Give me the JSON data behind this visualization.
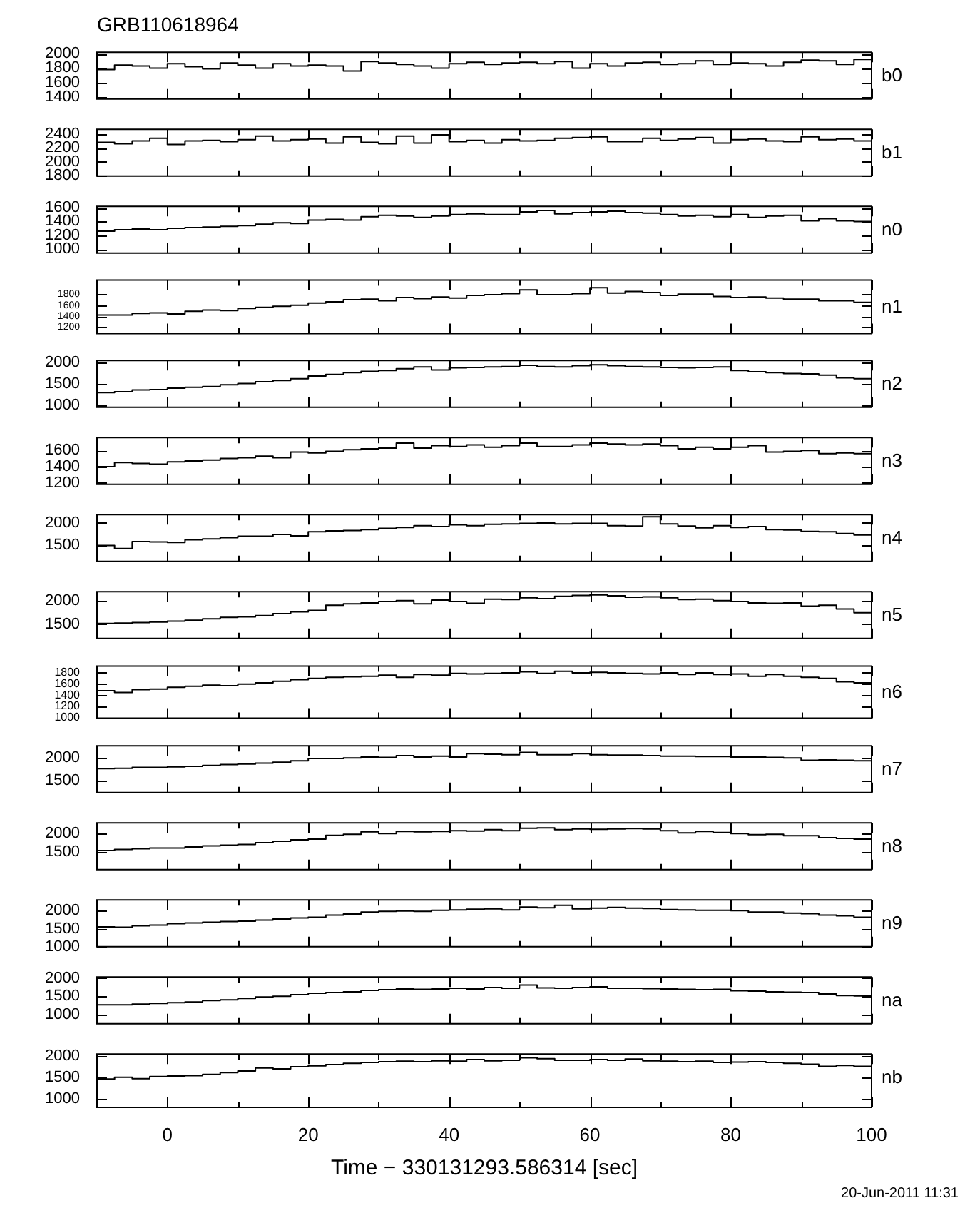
{
  "chart_data": [
    {
      "type": "step",
      "title": "GRB110618964",
      "ylabel": "b0",
      "color": "#000000",
      "xlim": [
        -10,
        100
      ],
      "xticks": [
        0,
        {
          "value": 10,
          "label": null
        },
        20,
        {
          "value": 30,
          "label": null
        },
        40,
        {
          "value": 50,
          "label": null
        },
        60,
        {
          "value": 70,
          "label": null
        },
        80,
        {
          "value": 90,
          "label": null
        },
        100
      ],
      "ylim": [
        1370,
        2020
      ],
      "yticks": [
        1400,
        1600,
        1800,
        2000
      ],
      "tick_labels": "y",
      "x": [
        -10,
        -7.5,
        -5,
        -2.5,
        0,
        2.5,
        5,
        7.5,
        10,
        12.5,
        15,
        17.5,
        20,
        22.5,
        25,
        27.5,
        30,
        32.5,
        35,
        37.5,
        40,
        42.5,
        45,
        47.5,
        50,
        52.5,
        55,
        57.5,
        60,
        62.5,
        65,
        67.5,
        70,
        72.5,
        75,
        77.5,
        80,
        82.5,
        85,
        87.5,
        90,
        92.5,
        95,
        97.5,
        100
      ],
      "values": [
        1780,
        1840,
        1830,
        1800,
        1860,
        1820,
        1790,
        1870,
        1840,
        1800,
        1860,
        1830,
        1840,
        1830,
        1760,
        1890,
        1870,
        1850,
        1830,
        1800,
        1860,
        1880,
        1850,
        1870,
        1880,
        1860,
        1890,
        1800,
        1860,
        1830,
        1870,
        1880,
        1850,
        1860,
        1900,
        1850,
        1870,
        1860,
        1830,
        1880,
        1910,
        1900,
        1850,
        1920,
        1920
      ]
    },
    {
      "type": "step",
      "ylabel": "b1",
      "color": "#000000",
      "xlim": [
        -10,
        100
      ],
      "xticks": [
        0,
        {
          "value": 10,
          "label": null
        },
        20,
        {
          "value": 30,
          "label": null
        },
        40,
        {
          "value": 50,
          "label": null
        },
        60,
        {
          "value": 70,
          "label": null
        },
        80,
        {
          "value": 90,
          "label": null
        },
        100
      ],
      "ylim": [
        1790,
        2470
      ],
      "yticks": [
        1800,
        2000,
        2200,
        2400
      ],
      "tick_labels": "y",
      "x": [
        -10,
        -7.5,
        -5,
        -2.5,
        0,
        2.5,
        5,
        7.5,
        10,
        12.5,
        15,
        17.5,
        20,
        22.5,
        25,
        27.5,
        30,
        32.5,
        35,
        37.5,
        40,
        42.5,
        45,
        47.5,
        50,
        52.5,
        55,
        57.5,
        60,
        62.5,
        65,
        67.5,
        70,
        72.5,
        75,
        77.5,
        80,
        82.5,
        85,
        87.5,
        90,
        92.5,
        95,
        97.5,
        100
      ],
      "values": [
        2280,
        2260,
        2300,
        2340,
        2250,
        2300,
        2310,
        2290,
        2320,
        2370,
        2300,
        2320,
        2330,
        2270,
        2360,
        2280,
        2260,
        2370,
        2270,
        2390,
        2290,
        2310,
        2270,
        2320,
        2300,
        2310,
        2340,
        2350,
        2360,
        2290,
        2290,
        2340,
        2310,
        2330,
        2350,
        2270,
        2320,
        2330,
        2300,
        2290,
        2360,
        2320,
        2330,
        2300,
        2300
      ]
    },
    {
      "type": "step",
      "ylabel": "n0",
      "color": "#000000",
      "xlim": [
        -10,
        100
      ],
      "xticks": [
        0,
        {
          "value": 10,
          "label": null
        },
        20,
        {
          "value": 30,
          "label": null
        },
        40,
        {
          "value": 50,
          "label": null
        },
        60,
        {
          "value": 70,
          "label": null
        },
        80,
        {
          "value": 90,
          "label": null
        },
        100
      ],
      "ylim": [
        940,
        1620
      ],
      "yticks": [
        1000,
        1200,
        1400,
        1600
      ],
      "tick_labels": "y",
      "x": [
        -10,
        -7.5,
        -5,
        -2.5,
        0,
        2.5,
        5,
        7.5,
        10,
        12.5,
        15,
        17.5,
        20,
        22.5,
        25,
        27.5,
        30,
        32.5,
        35,
        37.5,
        40,
        42.5,
        45,
        47.5,
        50,
        52.5,
        55,
        57.5,
        60,
        62.5,
        65,
        67.5,
        70,
        72.5,
        75,
        77.5,
        80,
        82.5,
        85,
        87.5,
        90,
        92.5,
        95,
        97.5,
        100
      ],
      "values": [
        1260,
        1280,
        1290,
        1280,
        1300,
        1310,
        1320,
        1330,
        1340,
        1360,
        1380,
        1370,
        1420,
        1430,
        1420,
        1470,
        1490,
        1480,
        1460,
        1480,
        1500,
        1510,
        1500,
        1500,
        1540,
        1560,
        1510,
        1530,
        1540,
        1550,
        1530,
        1520,
        1500,
        1480,
        1490,
        1470,
        1500,
        1460,
        1480,
        1490,
        1410,
        1440,
        1410,
        1400,
        1400
      ]
    },
    {
      "type": "step",
      "ylabel": "n1",
      "color": "#000000",
      "xlim": [
        -10,
        100
      ],
      "xticks": [
        0,
        {
          "value": 10,
          "label": null
        },
        20,
        {
          "value": 30,
          "label": null
        },
        40,
        {
          "value": 50,
          "label": null
        },
        60,
        {
          "value": 70,
          "label": null
        },
        80,
        {
          "value": 90,
          "label": null
        },
        100
      ],
      "ylim": [
        1080,
        2060
      ],
      "yticks": [
        1200,
        1400,
        1600,
        1800
      ],
      "tick_labels": "y",
      "x": [
        -10,
        -7.5,
        -5,
        -2.5,
        0,
        2.5,
        5,
        7.5,
        10,
        12.5,
        15,
        17.5,
        20,
        22.5,
        25,
        27.5,
        30,
        32.5,
        35,
        37.5,
        40,
        42.5,
        45,
        47.5,
        50,
        52.5,
        55,
        57.5,
        60,
        62.5,
        65,
        67.5,
        70,
        72.5,
        75,
        77.5,
        80,
        82.5,
        85,
        87.5,
        90,
        92.5,
        95,
        97.5,
        100
      ],
      "values": [
        1420,
        1420,
        1450,
        1460,
        1440,
        1490,
        1510,
        1500,
        1540,
        1560,
        1580,
        1600,
        1640,
        1660,
        1700,
        1710,
        1680,
        1740,
        1720,
        1750,
        1730,
        1780,
        1790,
        1810,
        1880,
        1790,
        1790,
        1810,
        1920,
        1820,
        1850,
        1830,
        1780,
        1800,
        1800,
        1760,
        1740,
        1750,
        1730,
        1710,
        1710,
        1680,
        1680,
        1650,
        1650
      ]
    },
    {
      "type": "step",
      "ylabel": "n2",
      "color": "#000000",
      "xlim": [
        -10,
        100
      ],
      "xticks": [
        0,
        {
          "value": 10,
          "label": null
        },
        20,
        {
          "value": 30,
          "label": null
        },
        40,
        {
          "value": 50,
          "label": null
        },
        60,
        {
          "value": 70,
          "label": null
        },
        80,
        {
          "value": 90,
          "label": null
        },
        100
      ],
      "ylim": [
        960,
        2040
      ],
      "yticks": [
        1000,
        1500,
        2000
      ],
      "tick_labels": "y",
      "x": [
        -10,
        -7.5,
        -5,
        -2.5,
        0,
        2.5,
        5,
        7.5,
        10,
        12.5,
        15,
        17.5,
        20,
        22.5,
        25,
        27.5,
        30,
        32.5,
        35,
        37.5,
        40,
        42.5,
        45,
        47.5,
        50,
        52.5,
        55,
        57.5,
        60,
        62.5,
        65,
        67.5,
        70,
        72.5,
        75,
        77.5,
        80,
        82.5,
        85,
        87.5,
        90,
        92.5,
        95,
        97.5,
        100
      ],
      "values": [
        1300,
        1320,
        1360,
        1370,
        1400,
        1420,
        1440,
        1480,
        1510,
        1550,
        1580,
        1620,
        1680,
        1720,
        1760,
        1790,
        1810,
        1850,
        1890,
        1820,
        1870,
        1880,
        1890,
        1900,
        1930,
        1900,
        1890,
        1920,
        1940,
        1920,
        1900,
        1890,
        1880,
        1870,
        1880,
        1890,
        1810,
        1780,
        1760,
        1740,
        1730,
        1700,
        1640,
        1620,
        1620
      ]
    },
    {
      "type": "step",
      "ylabel": "n3",
      "color": "#000000",
      "xlim": [
        -10,
        100
      ],
      "xticks": [
        0,
        {
          "value": 10,
          "label": null
        },
        20,
        {
          "value": 30,
          "label": null
        },
        40,
        {
          "value": 50,
          "label": null
        },
        60,
        {
          "value": 70,
          "label": null
        },
        80,
        {
          "value": 90,
          "label": null
        },
        100
      ],
      "ylim": [
        1180,
        1760
      ],
      "yticks": [
        1200,
        1400,
        1600
      ],
      "tick_labels": "y",
      "x": [
        -10,
        -7.5,
        -5,
        -2.5,
        0,
        2.5,
        5,
        7.5,
        10,
        12.5,
        15,
        17.5,
        20,
        22.5,
        25,
        27.5,
        30,
        32.5,
        35,
        37.5,
        40,
        42.5,
        45,
        47.5,
        50,
        52.5,
        55,
        57.5,
        60,
        62.5,
        65,
        67.5,
        70,
        72.5,
        75,
        77.5,
        80,
        82.5,
        85,
        87.5,
        90,
        92.5,
        95,
        97.5,
        100
      ],
      "values": [
        1400,
        1450,
        1440,
        1430,
        1460,
        1470,
        1480,
        1500,
        1510,
        1530,
        1510,
        1580,
        1570,
        1590,
        1610,
        1620,
        1630,
        1690,
        1630,
        1660,
        1650,
        1670,
        1640,
        1660,
        1690,
        1650,
        1650,
        1670,
        1690,
        1680,
        1670,
        1680,
        1660,
        1620,
        1640,
        1620,
        1640,
        1660,
        1580,
        1590,
        1600,
        1560,
        1570,
        1560,
        1560
      ]
    },
    {
      "type": "step",
      "ylabel": "n4",
      "color": "#000000",
      "xlim": [
        -10,
        100
      ],
      "xticks": [
        0,
        {
          "value": 10,
          "label": null
        },
        20,
        {
          "value": 30,
          "label": null
        },
        40,
        {
          "value": 50,
          "label": null
        },
        60,
        {
          "value": 70,
          "label": null
        },
        80,
        {
          "value": 90,
          "label": null
        },
        100
      ],
      "ylim": [
        1130,
        2190
      ],
      "yticks": [
        1500,
        2000
      ],
      "tick_labels": "y",
      "x": [
        -10,
        -7.5,
        -5,
        -2.5,
        0,
        2.5,
        5,
        7.5,
        10,
        12.5,
        15,
        17.5,
        20,
        22.5,
        25,
        27.5,
        30,
        32.5,
        35,
        37.5,
        40,
        42.5,
        45,
        47.5,
        50,
        52.5,
        55,
        57.5,
        60,
        62.5,
        65,
        67.5,
        70,
        72.5,
        75,
        77.5,
        80,
        82.5,
        85,
        87.5,
        90,
        92.5,
        95,
        97.5,
        100
      ],
      "values": [
        1490,
        1420,
        1580,
        1570,
        1560,
        1620,
        1640,
        1670,
        1700,
        1700,
        1740,
        1710,
        1800,
        1820,
        1830,
        1850,
        1880,
        1900,
        1940,
        1920,
        1960,
        1940,
        1970,
        1980,
        1990,
        2000,
        1980,
        1990,
        1990,
        1940,
        1930,
        2140,
        1980,
        1930,
        1890,
        1940,
        1900,
        1920,
        1850,
        1840,
        1810,
        1800,
        1760,
        1730,
        1730
      ]
    },
    {
      "type": "step",
      "ylabel": "n5",
      "color": "#000000",
      "xlim": [
        -10,
        100
      ],
      "xticks": [
        0,
        {
          "value": 10,
          "label": null
        },
        20,
        {
          "value": 30,
          "label": null
        },
        40,
        {
          "value": 50,
          "label": null
        },
        60,
        {
          "value": 70,
          "label": null
        },
        80,
        {
          "value": 90,
          "label": null
        },
        100
      ],
      "ylim": [
        1190,
        2190
      ],
      "yticks": [
        1500,
        2000
      ],
      "tick_labels": "y",
      "x": [
        -10,
        -7.5,
        -5,
        -2.5,
        0,
        2.5,
        5,
        7.5,
        10,
        12.5,
        15,
        17.5,
        20,
        22.5,
        25,
        27.5,
        30,
        32.5,
        35,
        37.5,
        40,
        42.5,
        45,
        47.5,
        50,
        52.5,
        55,
        57.5,
        60,
        62.5,
        65,
        67.5,
        70,
        72.5,
        75,
        77.5,
        80,
        82.5,
        85,
        87.5,
        90,
        92.5,
        95,
        97.5,
        100
      ],
      "values": [
        1510,
        1520,
        1530,
        1540,
        1560,
        1580,
        1610,
        1640,
        1650,
        1680,
        1720,
        1760,
        1790,
        1900,
        1930,
        1950,
        1980,
        2000,
        1930,
        2010,
        1980,
        1940,
        2030,
        2020,
        2060,
        2040,
        2090,
        2110,
        2120,
        2100,
        2070,
        2080,
        2060,
        2020,
        2030,
        2000,
        1980,
        1950,
        1940,
        1950,
        1880,
        1900,
        1820,
        1740,
        1740
      ]
    },
    {
      "type": "step",
      "ylabel": "n6",
      "color": "#000000",
      "xlim": [
        -10,
        100
      ],
      "xticks": [
        0,
        {
          "value": 10,
          "label": null
        },
        20,
        {
          "value": 30,
          "label": null
        },
        40,
        {
          "value": 50,
          "label": null
        },
        60,
        {
          "value": 70,
          "label": null
        },
        80,
        {
          "value": 90,
          "label": null
        },
        100
      ],
      "ylim": [
        990,
        1920
      ],
      "yticks": [
        1000,
        1200,
        1400,
        1600,
        1800
      ],
      "tick_labels": "y",
      "x": [
        -10,
        -7.5,
        -5,
        -2.5,
        0,
        2.5,
        5,
        7.5,
        10,
        12.5,
        15,
        17.5,
        20,
        22.5,
        25,
        27.5,
        30,
        32.5,
        35,
        37.5,
        40,
        42.5,
        45,
        47.5,
        50,
        52.5,
        55,
        57.5,
        60,
        62.5,
        65,
        67.5,
        70,
        72.5,
        75,
        77.5,
        80,
        82.5,
        85,
        87.5,
        90,
        92.5,
        95,
        97.5,
        100
      ],
      "values": [
        1480,
        1450,
        1500,
        1510,
        1540,
        1560,
        1580,
        1570,
        1600,
        1620,
        1650,
        1680,
        1700,
        1720,
        1730,
        1740,
        1760,
        1720,
        1770,
        1760,
        1790,
        1780,
        1790,
        1800,
        1820,
        1790,
        1830,
        1800,
        1810,
        1800,
        1790,
        1780,
        1800,
        1770,
        1800,
        1770,
        1780,
        1740,
        1770,
        1740,
        1720,
        1700,
        1640,
        1620,
        1620
      ]
    },
    {
      "type": "step",
      "ylabel": "n7",
      "color": "#000000",
      "xlim": [
        -10,
        100
      ],
      "xticks": [
        0,
        {
          "value": 10,
          "label": null
        },
        20,
        {
          "value": 30,
          "label": null
        },
        40,
        {
          "value": 50,
          "label": null
        },
        60,
        {
          "value": 70,
          "label": null
        },
        80,
        {
          "value": 90,
          "label": null
        },
        100
      ],
      "ylim": [
        1250,
        2250
      ],
      "yticks": [
        1500,
        2000
      ],
      "tick_labels": "y",
      "x": [
        -10,
        -7.5,
        -5,
        -2.5,
        0,
        2.5,
        5,
        7.5,
        10,
        12.5,
        15,
        17.5,
        20,
        22.5,
        25,
        27.5,
        30,
        32.5,
        35,
        37.5,
        40,
        42.5,
        45,
        47.5,
        50,
        52.5,
        55,
        57.5,
        60,
        62.5,
        65,
        67.5,
        70,
        72.5,
        75,
        77.5,
        80,
        82.5,
        85,
        87.5,
        90,
        92.5,
        95,
        97.5,
        100
      ],
      "values": [
        1760,
        1770,
        1790,
        1790,
        1800,
        1810,
        1830,
        1850,
        1860,
        1880,
        1900,
        1930,
        1980,
        1980,
        1990,
        2010,
        2000,
        2040,
        2010,
        2030,
        2010,
        2080,
        2070,
        2060,
        2110,
        2060,
        2060,
        2080,
        2060,
        2050,
        2050,
        2040,
        2030,
        2030,
        2020,
        2020,
        2010,
        2010,
        2000,
        1990,
        1940,
        1950,
        1940,
        1930,
        1930
      ]
    },
    {
      "type": "step",
      "ylabel": "n8",
      "color": "#000000",
      "xlim": [
        -10,
        100
      ],
      "xticks": [
        0,
        {
          "value": 10,
          "label": null
        },
        20,
        {
          "value": 30,
          "label": null
        },
        40,
        {
          "value": 50,
          "label": null
        },
        60,
        {
          "value": 70,
          "label": null
        },
        80,
        {
          "value": 90,
          "label": null
        },
        100
      ],
      "ylim": [
        1000,
        2300
      ],
      "yticks": [
        1500,
        2000
      ],
      "tick_labels": "y",
      "x": [
        -10,
        -7.5,
        -5,
        -2.5,
        0,
        2.5,
        5,
        7.5,
        10,
        12.5,
        15,
        17.5,
        20,
        22.5,
        25,
        27.5,
        30,
        32.5,
        35,
        37.5,
        40,
        42.5,
        45,
        47.5,
        50,
        52.5,
        55,
        57.5,
        60,
        62.5,
        65,
        67.5,
        70,
        72.5,
        75,
        77.5,
        80,
        82.5,
        85,
        87.5,
        90,
        92.5,
        95,
        97.5,
        100
      ],
      "values": [
        1530,
        1560,
        1580,
        1600,
        1600,
        1630,
        1660,
        1680,
        1700,
        1750,
        1790,
        1830,
        1850,
        1950,
        1980,
        2050,
        2000,
        2060,
        2050,
        2060,
        2080,
        2070,
        2110,
        2080,
        2150,
        2160,
        2110,
        2130,
        2120,
        2130,
        2140,
        2130,
        2080,
        2020,
        2060,
        2030,
        2000,
        1970,
        1980,
        1940,
        1940,
        1890,
        1870,
        1850,
        1850
      ]
    },
    {
      "type": "step",
      "ylabel": "n9",
      "color": "#000000",
      "xlim": [
        -10,
        100
      ],
      "xticks": [
        0,
        {
          "value": 10,
          "label": null
        },
        20,
        {
          "value": 30,
          "label": null
        },
        40,
        {
          "value": 50,
          "label": null
        },
        60,
        {
          "value": 70,
          "label": null
        },
        80,
        {
          "value": 90,
          "label": null
        },
        100
      ],
      "ylim": [
        1000,
        2300
      ],
      "yticks": [
        1000,
        1500,
        2000
      ],
      "tick_labels": "y",
      "x": [
        -10,
        -7.5,
        -5,
        -2.5,
        0,
        2.5,
        5,
        7.5,
        10,
        12.5,
        15,
        17.5,
        20,
        22.5,
        25,
        27.5,
        30,
        32.5,
        35,
        37.5,
        40,
        42.5,
        45,
        47.5,
        50,
        52.5,
        55,
        57.5,
        60,
        62.5,
        65,
        67.5,
        70,
        72.5,
        75,
        77.5,
        80,
        82.5,
        85,
        87.5,
        90,
        92.5,
        95,
        97.5,
        100
      ],
      "values": [
        1550,
        1540,
        1580,
        1600,
        1640,
        1660,
        1680,
        1700,
        1710,
        1740,
        1770,
        1800,
        1820,
        1880,
        1910,
        1960,
        1980,
        1990,
        1980,
        2010,
        2020,
        2040,
        2050,
        2020,
        2100,
        2080,
        2150,
        2050,
        2070,
        2090,
        2070,
        2060,
        2030,
        2020,
        2010,
        2010,
        2000,
        1960,
        1960,
        1930,
        1920,
        1880,
        1860,
        1820,
        1820
      ]
    },
    {
      "type": "step",
      "ylabel": "na",
      "color": "#000000",
      "xlim": [
        -10,
        100
      ],
      "xticks": [
        0,
        {
          "value": 10,
          "label": null
        },
        20,
        {
          "value": 30,
          "label": null
        },
        40,
        {
          "value": 50,
          "label": null
        },
        60,
        {
          "value": 70,
          "label": null
        },
        80,
        {
          "value": 90,
          "label": null
        },
        100
      ],
      "ylim": [
        740,
        2030
      ],
      "yticks": [
        1000,
        1500,
        2000
      ],
      "tick_labels": "y",
      "x": [
        -10,
        -7.5,
        -5,
        -2.5,
        0,
        2.5,
        5,
        7.5,
        10,
        12.5,
        15,
        17.5,
        20,
        22.5,
        25,
        27.5,
        30,
        32.5,
        35,
        37.5,
        40,
        42.5,
        45,
        47.5,
        50,
        52.5,
        55,
        57.5,
        60,
        62.5,
        65,
        67.5,
        70,
        72.5,
        75,
        77.5,
        80,
        82.5,
        85,
        87.5,
        90,
        92.5,
        95,
        97.5,
        100
      ],
      "values": [
        1260,
        1260,
        1280,
        1300,
        1320,
        1340,
        1380,
        1400,
        1440,
        1480,
        1500,
        1540,
        1580,
        1600,
        1620,
        1660,
        1680,
        1700,
        1690,
        1700,
        1720,
        1700,
        1740,
        1720,
        1810,
        1730,
        1720,
        1740,
        1760,
        1720,
        1720,
        1710,
        1700,
        1690,
        1680,
        1690,
        1650,
        1640,
        1620,
        1610,
        1600,
        1560,
        1520,
        1510,
        1510
      ]
    },
    {
      "type": "step",
      "ylabel": "nb",
      "xlabel": "Time − 330131293.586314 [sec]",
      "annotations": [
        "20-Jun-2011 11:31"
      ],
      "color": "#000000",
      "xlim": [
        -10,
        100
      ],
      "xticks": [
        0,
        {
          "value": 10,
          "label": null
        },
        20,
        {
          "value": 30,
          "label": null
        },
        40,
        {
          "value": 50,
          "label": null
        },
        60,
        {
          "value": 70,
          "label": null
        },
        80,
        {
          "value": 90,
          "label": null
        },
        100
      ],
      "ylim": [
        790,
        2050
      ],
      "yticks": [
        1000,
        1500,
        2000
      ],
      "x": [
        -10,
        -7.5,
        -5,
        -2.5,
        0,
        2.5,
        5,
        7.5,
        10,
        12.5,
        15,
        17.5,
        20,
        22.5,
        25,
        27.5,
        30,
        32.5,
        35,
        37.5,
        40,
        42.5,
        45,
        47.5,
        50,
        52.5,
        55,
        57.5,
        60,
        62.5,
        65,
        67.5,
        70,
        72.5,
        75,
        77.5,
        80,
        82.5,
        85,
        87.5,
        90,
        92.5,
        95,
        97.5,
        100
      ],
      "values": [
        1460,
        1500,
        1470,
        1520,
        1530,
        1540,
        1570,
        1610,
        1650,
        1720,
        1700,
        1750,
        1770,
        1800,
        1830,
        1850,
        1870,
        1880,
        1870,
        1890,
        1880,
        1920,
        1890,
        1900,
        1960,
        1940,
        1900,
        1900,
        1920,
        1900,
        1930,
        1890,
        1880,
        1870,
        1880,
        1850,
        1860,
        1870,
        1850,
        1830,
        1810,
        1760,
        1780,
        1760,
        1760
      ]
    }
  ]
}
